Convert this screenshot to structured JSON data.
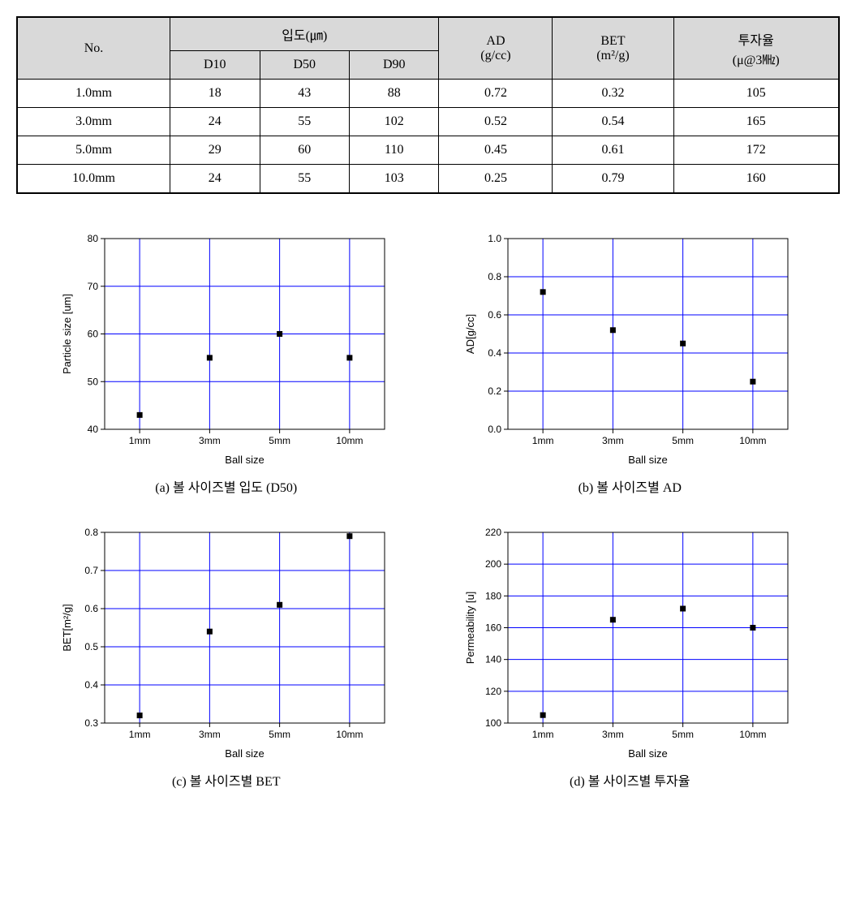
{
  "table": {
    "headers": {
      "no": "No.",
      "particle_group": "입도(㎛)",
      "d10": "D10",
      "d50": "D50",
      "d90": "D90",
      "ad": "AD\n(g/cc)",
      "bet": "BET\n(m²/g)",
      "perm": "투자율\n(μ@3㎒)"
    },
    "rows": [
      {
        "no": "1.0mm",
        "d10": "18",
        "d50": "43",
        "d90": "88",
        "ad": "0.72",
        "bet": "0.32",
        "perm": "105"
      },
      {
        "no": "3.0mm",
        "d10": "24",
        "d50": "55",
        "d90": "102",
        "ad": "0.52",
        "bet": "0.54",
        "perm": "165"
      },
      {
        "no": "5.0mm",
        "d10": "29",
        "d50": "60",
        "d90": "110",
        "ad": "0.45",
        "bet": "0.61",
        "perm": "172"
      },
      {
        "no": "10.0mm",
        "d10": "24",
        "d50": "55",
        "d90": "103",
        "ad": "0.25",
        "bet": "0.79",
        "perm": "160"
      }
    ]
  },
  "charts": {
    "common": {
      "categories": [
        "1mm",
        "3mm",
        "5mm",
        "10mm"
      ],
      "xlabel": "Ball size",
      "grid_color": "#0000ff",
      "axis_color": "#000000",
      "marker_color": "#000000",
      "marker_size": 7,
      "background_color": "#ffffff",
      "label_fontsize": 13,
      "tick_fontsize": 12
    },
    "a": {
      "type": "scatter",
      "caption": "(a) 볼 사이즈별 입도 (D50)",
      "ylabel": "Particle size [um]",
      "values": [
        43,
        55,
        60,
        55
      ],
      "ylim": [
        40,
        80
      ],
      "ytick_step": 10
    },
    "b": {
      "type": "scatter",
      "caption": "(b) 볼 사이즈별 AD",
      "ylabel": "AD[g/cc]",
      "values": [
        0.72,
        0.52,
        0.45,
        0.25
      ],
      "ylim": [
        0.0,
        1.0
      ],
      "ytick_step": 0.2
    },
    "c": {
      "type": "scatter",
      "caption": "(c) 볼 사이즈별 BET",
      "ylabel": "BET[m²/g]",
      "values": [
        0.32,
        0.54,
        0.61,
        0.79
      ],
      "ylim": [
        0.3,
        0.8
      ],
      "ytick_step": 0.1
    },
    "d": {
      "type": "scatter",
      "caption": "(d) 볼 사이즈별 투자율",
      "ylabel": "Permeability [u]",
      "values": [
        105,
        165,
        172,
        160
      ],
      "ylim": [
        100,
        220
      ],
      "ytick_step": 20
    }
  }
}
